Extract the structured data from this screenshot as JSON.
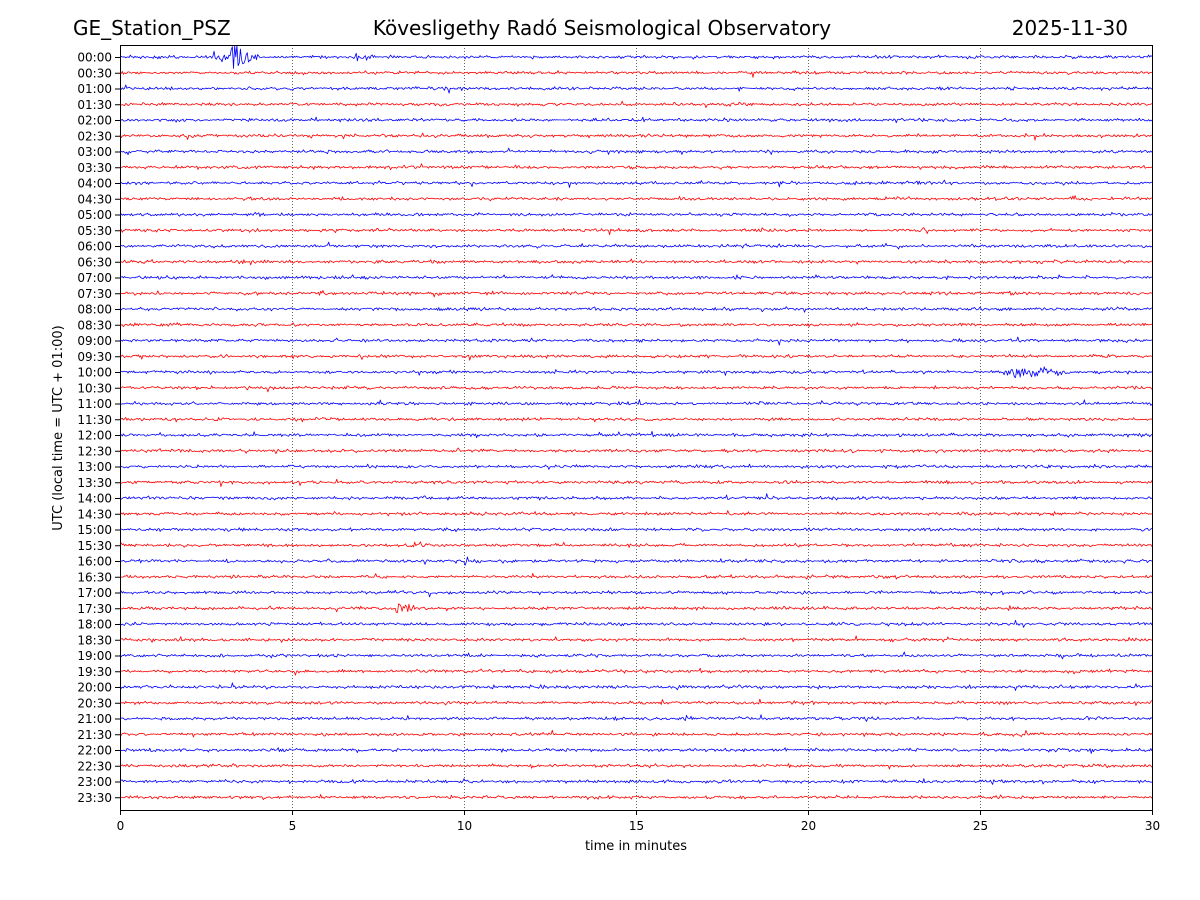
{
  "chart_data": {
    "type": "line",
    "title_left": "GE_Station_PSZ",
    "title": "Kövesligethy Radó Seismological Observatory",
    "title_right": "2025-11-30",
    "xlabel": "time in minutes",
    "ylabel": "UTC (local time = UTC + 01:00)",
    "xlim": [
      0,
      30
    ],
    "x_ticks": [
      0,
      5,
      10,
      15,
      20,
      25,
      30
    ],
    "x_tick_labels": [
      "0",
      "5",
      "10",
      "15",
      "20",
      "25",
      "30"
    ],
    "grid_x": true,
    "row_labels": [
      "00:00",
      "00:30",
      "01:00",
      "01:30",
      "02:00",
      "02:30",
      "03:00",
      "03:30",
      "04:00",
      "04:30",
      "05:00",
      "05:30",
      "06:00",
      "06:30",
      "07:00",
      "07:30",
      "08:00",
      "08:30",
      "09:00",
      "09:30",
      "10:00",
      "10:30",
      "11:00",
      "11:30",
      "12:00",
      "12:30",
      "13:00",
      "13:30",
      "14:00",
      "14:30",
      "15:00",
      "15:30",
      "16:00",
      "16:30",
      "17:00",
      "17:30",
      "18:00",
      "18:30",
      "19:00",
      "19:30",
      "20:00",
      "20:30",
      "21:00",
      "21:30",
      "22:00",
      "22:30",
      "23:00",
      "23:30"
    ],
    "trace_colors": [
      "#0000ff",
      "#ff0000"
    ],
    "events": [
      {
        "row": "00:00",
        "start_min": 2.6,
        "end_min": 4.0,
        "peak_min": 3.3,
        "amplitude": 1.0
      },
      {
        "row": "00:00",
        "start_min": 6.6,
        "end_min": 7.4,
        "peak_min": 7.0,
        "amplitude": 0.35
      },
      {
        "row": "10:00",
        "start_min": 25.6,
        "end_min": 27.6,
        "peak_min": 26.2,
        "amplitude": 0.55
      },
      {
        "row": "17:30",
        "start_min": 7.9,
        "end_min": 8.6,
        "peak_min": 8.1,
        "amplitude": 0.35
      }
    ]
  }
}
